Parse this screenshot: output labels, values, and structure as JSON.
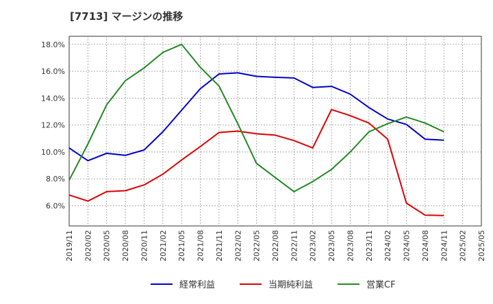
{
  "chart_data": {
    "type": "line",
    "title": "[7713]  マージンの推移",
    "x": [
      "2019/11",
      "2020/02",
      "2020/05",
      "2020/08",
      "2020/11",
      "2021/02",
      "2021/05",
      "2021/08",
      "2021/11",
      "2022/02",
      "2022/05",
      "2022/08",
      "2022/11",
      "2023/02",
      "2023/05",
      "2023/08",
      "2023/11",
      "2024/02",
      "2024/05",
      "2024/08",
      "2024/11",
      "2025/02",
      "2025/05"
    ],
    "y_ticks": [
      "6.0%",
      "8.0%",
      "10.0%",
      "12.0%",
      "14.0%",
      "16.0%",
      "18.0%"
    ],
    "ylim": [
      4.5,
      18.6
    ],
    "series": [
      {
        "name": "経常利益",
        "color": "#0000cc",
        "values": [
          10.3,
          9.35,
          9.9,
          9.75,
          10.15,
          11.5,
          13.1,
          14.7,
          15.8,
          15.88,
          15.62,
          15.55,
          15.5,
          14.8,
          14.88,
          14.3,
          13.3,
          12.45,
          12.05,
          10.95,
          10.88,
          null,
          null
        ]
      },
      {
        "name": "当期純利益",
        "color": "#dd0000",
        "values": [
          6.8,
          6.35,
          7.05,
          7.12,
          7.55,
          8.35,
          9.4,
          10.4,
          11.45,
          11.55,
          11.35,
          11.25,
          10.85,
          10.3,
          13.15,
          12.7,
          12.15,
          10.95,
          6.2,
          5.3,
          5.28,
          null,
          null
        ]
      },
      {
        "name": "営業CF",
        "color": "#228822",
        "values": [
          7.9,
          10.6,
          13.5,
          15.3,
          16.25,
          17.4,
          18.0,
          16.3,
          14.9,
          12.1,
          9.15,
          8.1,
          7.05,
          7.8,
          8.7,
          10.0,
          11.5,
          12.1,
          12.6,
          12.15,
          11.5,
          null,
          null
        ]
      }
    ],
    "legend_position": "bottom",
    "grid": true
  }
}
